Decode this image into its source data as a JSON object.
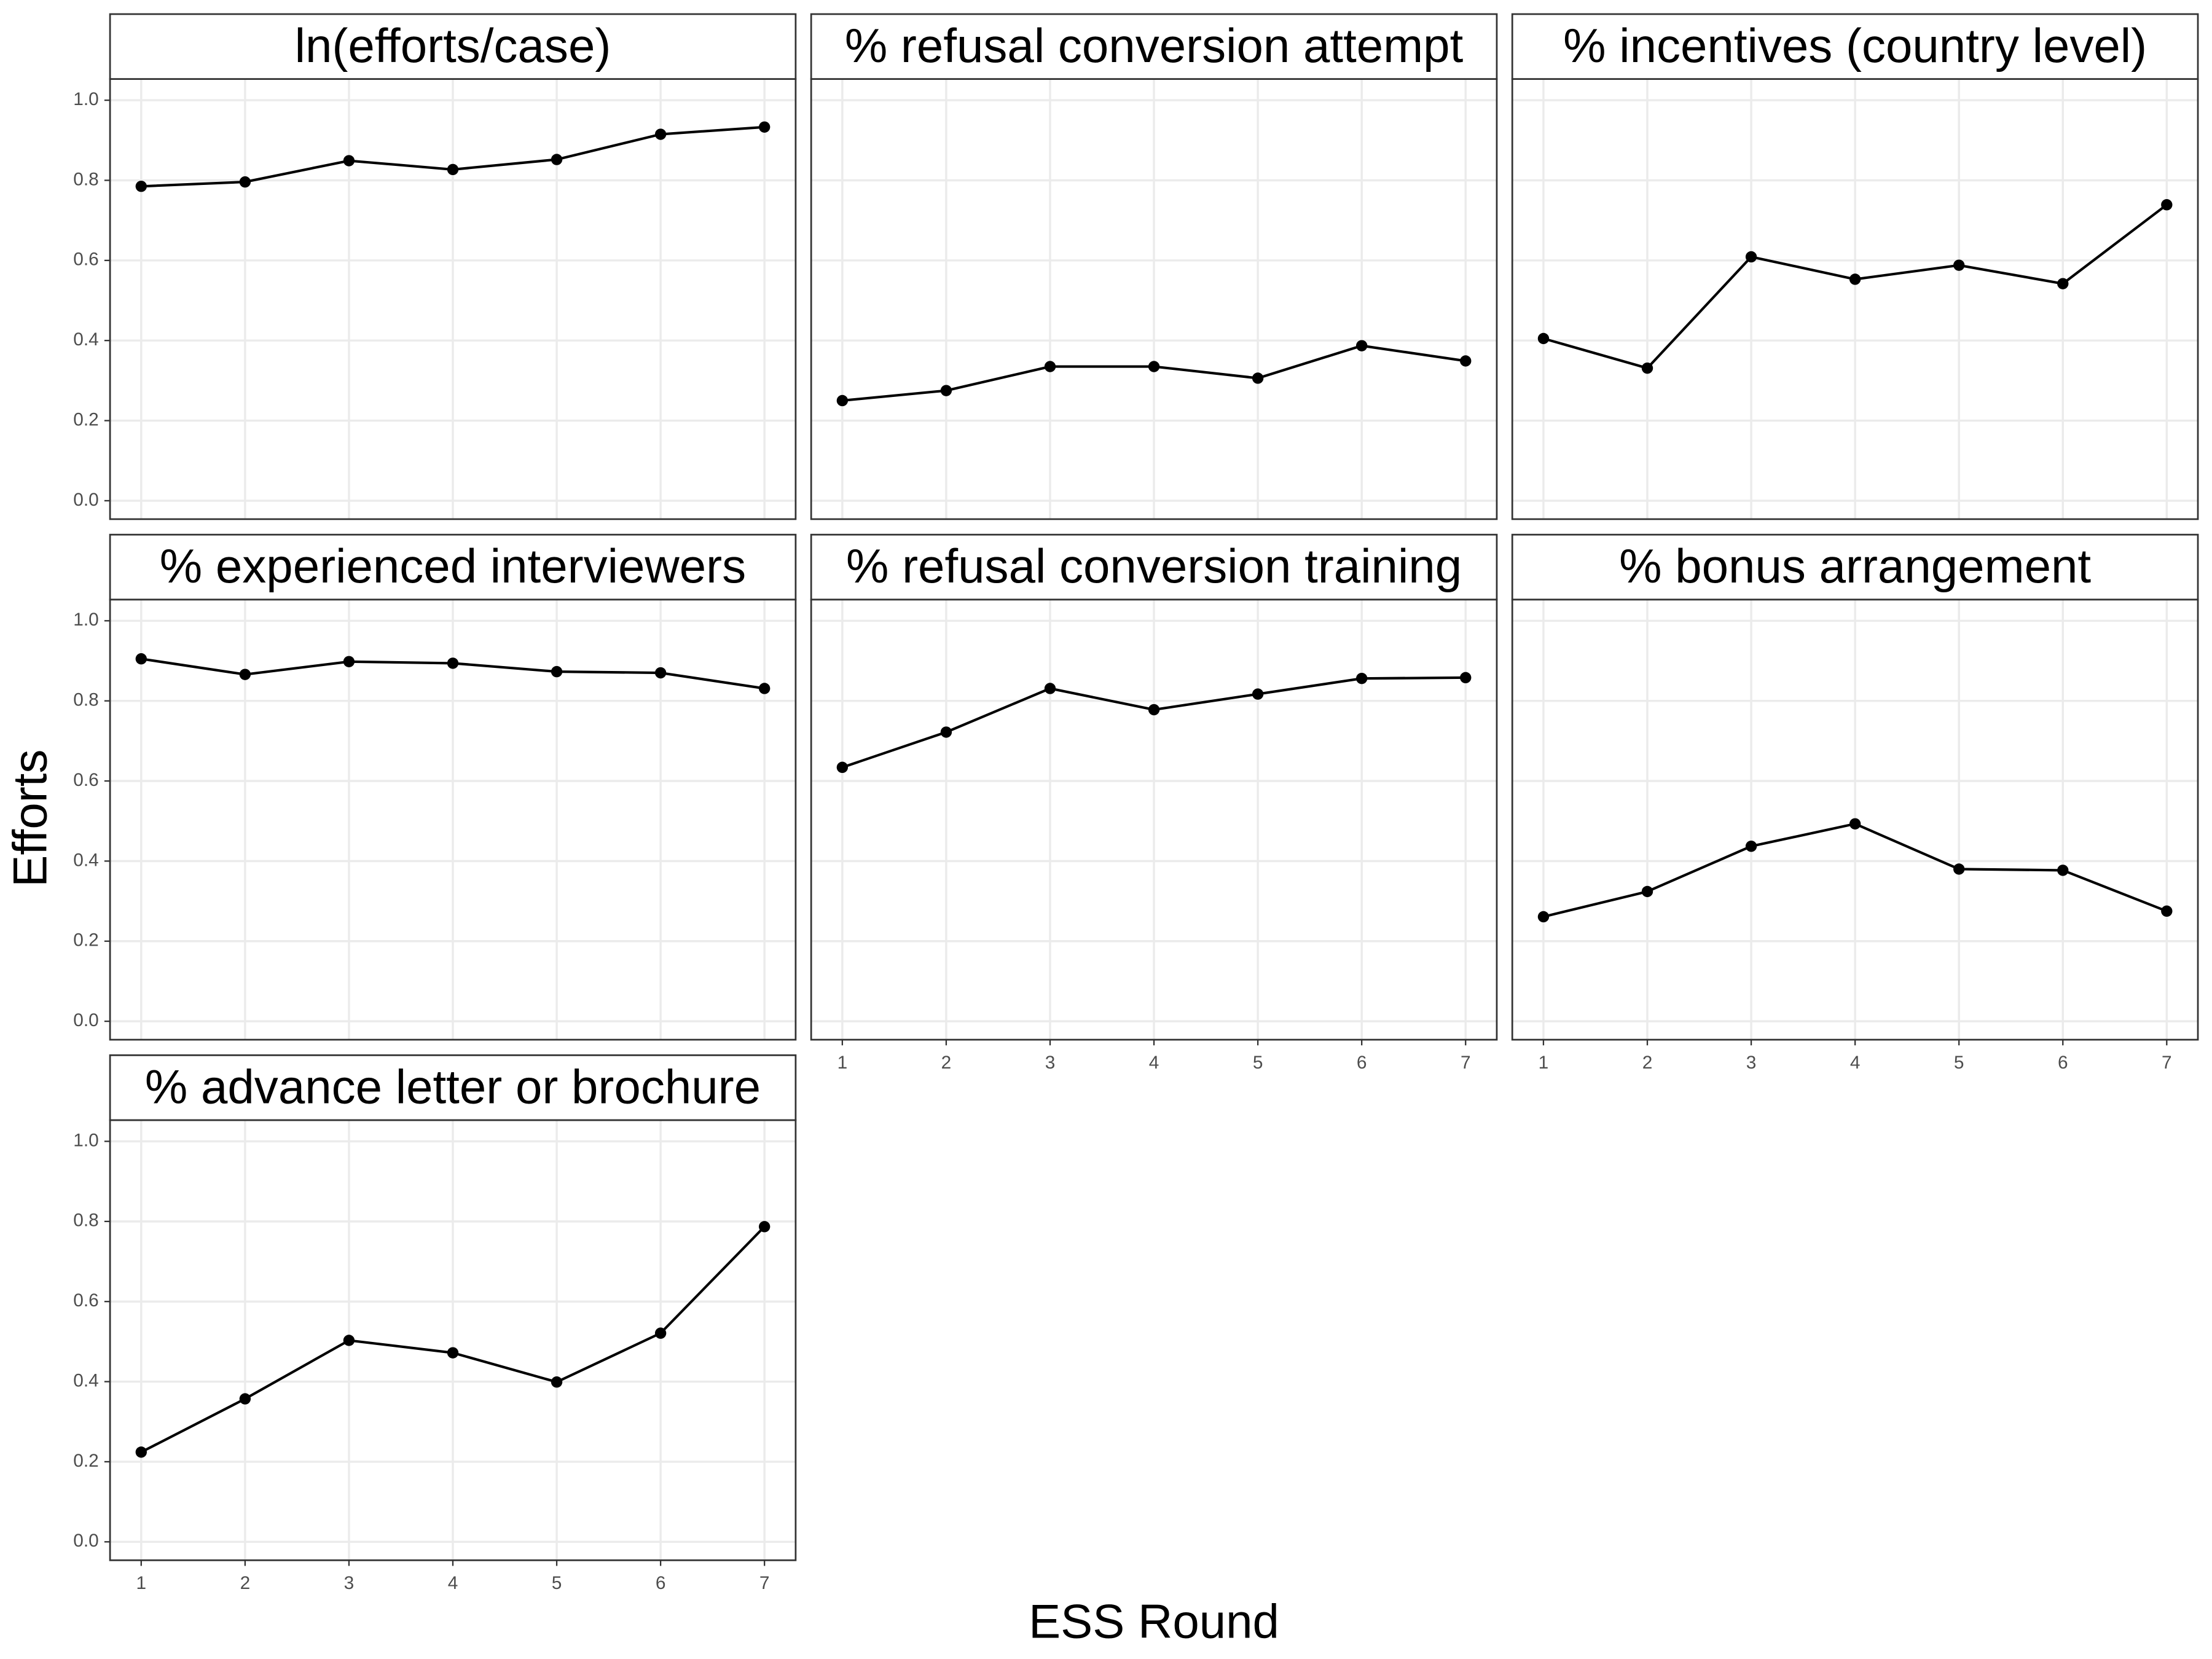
{
  "chart_data": [
    {
      "type": "line",
      "title": "ln(efforts/case)",
      "x": [
        1,
        2,
        3,
        4,
        5,
        6,
        7
      ],
      "values": [
        0.785,
        0.796,
        0.849,
        0.827,
        0.852,
        0.915,
        0.933
      ],
      "color": "#000000"
    },
    {
      "type": "line",
      "title": "% refusal conversion attempt",
      "x": [
        1,
        2,
        3,
        4,
        5,
        6,
        7
      ],
      "values": [
        0.25,
        0.275,
        0.335,
        0.335,
        0.306,
        0.387,
        0.349
      ],
      "color": "#000000"
    },
    {
      "type": "line",
      "title": "% incentives (country level)",
      "x": [
        1,
        2,
        3,
        4,
        5,
        6,
        7
      ],
      "values": [
        0.405,
        0.331,
        0.609,
        0.553,
        0.588,
        0.542,
        0.739
      ],
      "color": "#000000"
    },
    {
      "type": "line",
      "title": "% experienced interviewers",
      "x": [
        1,
        2,
        3,
        4,
        5,
        6,
        7
      ],
      "values": [
        0.905,
        0.866,
        0.898,
        0.894,
        0.873,
        0.87,
        0.831
      ],
      "color": "#000000"
    },
    {
      "type": "line",
      "title": "% refusal conversion training",
      "x": [
        1,
        2,
        3,
        4,
        5,
        6,
        7
      ],
      "values": [
        0.634,
        0.722,
        0.831,
        0.778,
        0.817,
        0.856,
        0.858
      ],
      "color": "#000000"
    },
    {
      "type": "line",
      "title": "% bonus arrangement",
      "x": [
        1,
        2,
        3,
        4,
        5,
        6,
        7
      ],
      "values": [
        0.261,
        0.324,
        0.437,
        0.493,
        0.38,
        0.377,
        0.275
      ],
      "color": "#000000"
    },
    {
      "type": "line",
      "title": "% advance letter or brochure",
      "x": [
        1,
        2,
        3,
        4,
        5,
        6,
        7
      ],
      "values": [
        0.224,
        0.357,
        0.503,
        0.472,
        0.399,
        0.521,
        0.787
      ],
      "color": "#000000"
    }
  ],
  "xlabel": "ESS Round",
  "ylabel": "Efforts",
  "xlim": [
    0.7,
    7.3
  ],
  "ylim": [
    -0.046,
    1.053
  ],
  "xticks": [
    1,
    2,
    3,
    4,
    5,
    6,
    7
  ],
  "yticks": [
    {
      "value": 0,
      "label": "0.0"
    },
    0.2,
    0.4,
    0.6,
    0.8,
    {
      "value": 1,
      "label": "1.0"
    }
  ],
  "grid": true
}
